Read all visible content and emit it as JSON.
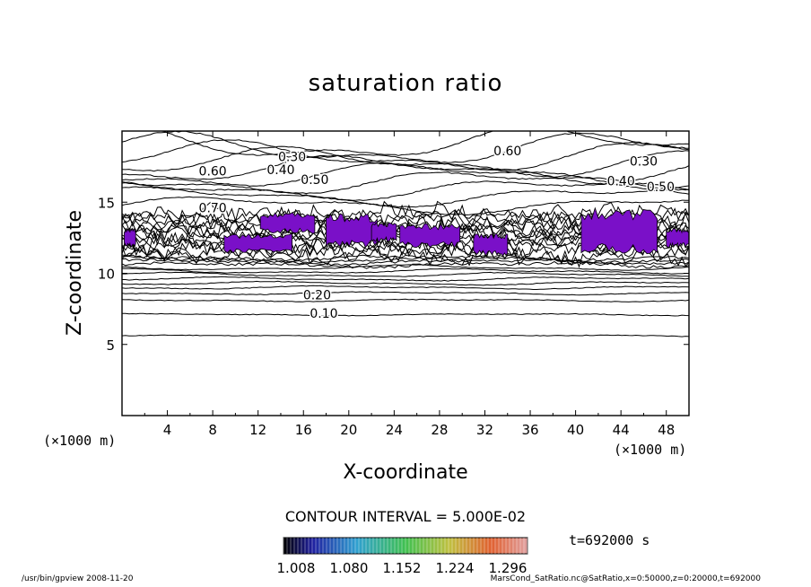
{
  "chart_data": {
    "type": "contour",
    "title": "saturation ratio",
    "xlabel": "X-coordinate",
    "ylabel": "Z-coordinate",
    "x_unit": "(×1000 m)",
    "z_unit": "(×1000 m)",
    "xlim": [
      0,
      50
    ],
    "ylim": [
      0,
      20
    ],
    "x_ticks": [
      4,
      8,
      12,
      16,
      20,
      24,
      28,
      32,
      36,
      40,
      44,
      48
    ],
    "y_ticks": [
      5,
      10,
      15
    ],
    "contour_interval": "CONTOUR INTERVAL = 5.000E-02",
    "time_label": "t=692000 s",
    "contour_labels": [
      {
        "text": "0.10",
        "x": 17.8,
        "z": 7.2
      },
      {
        "text": "0.20",
        "x": 17.2,
        "z": 8.5
      },
      {
        "text": "0.30",
        "x": 15.0,
        "z": 18.2
      },
      {
        "text": "0.40",
        "x": 14.0,
        "z": 17.3
      },
      {
        "text": "0.50",
        "x": 17.0,
        "z": 16.6
      },
      {
        "text": "0.60",
        "x": 8.0,
        "z": 17.2
      },
      {
        "text": "0.70",
        "x": 8.0,
        "z": 14.6
      },
      {
        "text": "0.60",
        "x": 34.0,
        "z": 18.6
      },
      {
        "text": "0.30",
        "x": 46.0,
        "z": 17.9
      },
      {
        "text": "0.40",
        "x": 44.0,
        "z": 16.5
      },
      {
        "text": "0.50",
        "x": 47.5,
        "z": 16.1
      }
    ],
    "colorbar": {
      "tick_labels": [
        "1.008",
        "1.080",
        "1.152",
        "1.224",
        "1.296"
      ],
      "range": [
        1.008,
        1.296
      ]
    },
    "supersaturated_regions": [
      {
        "x0": 0.2,
        "x1": 1.2,
        "z0": 11.8,
        "z1": 13.2
      },
      {
        "x0": 9.0,
        "x1": 15.0,
        "z0": 11.4,
        "z1": 12.8
      },
      {
        "x0": 12.2,
        "x1": 17.0,
        "z0": 12.8,
        "z1": 14.3
      },
      {
        "x0": 18.0,
        "x1": 22.5,
        "z0": 11.8,
        "z1": 14.2
      },
      {
        "x0": 22.0,
        "x1": 24.2,
        "z0": 12.2,
        "z1": 13.6
      },
      {
        "x0": 24.5,
        "x1": 29.8,
        "z0": 11.8,
        "z1": 13.5
      },
      {
        "x0": 31.0,
        "x1": 34.0,
        "z0": 11.2,
        "z1": 12.8
      },
      {
        "x0": 40.5,
        "x1": 47.2,
        "z0": 11.3,
        "z1": 14.6
      },
      {
        "x0": 48.0,
        "x1": 50.0,
        "z0": 11.8,
        "z1": 13.2
      }
    ]
  },
  "footer": {
    "left": "/usr/bin/gpview   2008-11-20",
    "right": "MarsCond_SatRatio.nc@SatRatio,x=0:50000,z=0:20000,t=692000"
  }
}
